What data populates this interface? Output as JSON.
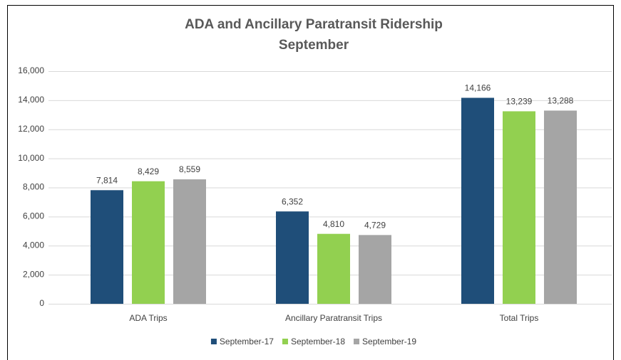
{
  "chart_data": {
    "type": "bar",
    "title": "ADA and Ancillary Paratransit Ridership",
    "subtitle": "September",
    "categories": [
      "ADA Trips",
      "Ancillary Paratransit Trips",
      "Total Trips"
    ],
    "series": [
      {
        "name": "September-17",
        "color": "#1f4e79",
        "values": [
          7814,
          6352,
          14166
        ],
        "value_labels": [
          "7,814",
          "6,352",
          "14,166"
        ]
      },
      {
        "name": "September-18",
        "color": "#92d050",
        "values": [
          8429,
          4810,
          13239
        ],
        "value_labels": [
          "8,429",
          "4,810",
          "13,239"
        ]
      },
      {
        "name": "September-19",
        "color": "#a5a5a5",
        "values": [
          8559,
          4729,
          13288
        ],
        "value_labels": [
          "8,559",
          "4,729",
          "13,288"
        ]
      }
    ],
    "ylim": [
      0,
      16000
    ],
    "yticks": [
      0,
      {
        "value": 2000,
        "label": "2,000"
      },
      {
        "value": 4000,
        "label": "4,000"
      },
      {
        "value": 6000,
        "label": "6,000"
      },
      {
        "value": 8000,
        "label": "8,000"
      },
      {
        "value": 10000,
        "label": "10,000"
      },
      {
        "value": 12000,
        "label": "12,000"
      },
      {
        "value": 14000,
        "label": "14,000"
      },
      {
        "value": 16000,
        "label": "16,000"
      }
    ],
    "grid": true,
    "legend": "bottom"
  }
}
